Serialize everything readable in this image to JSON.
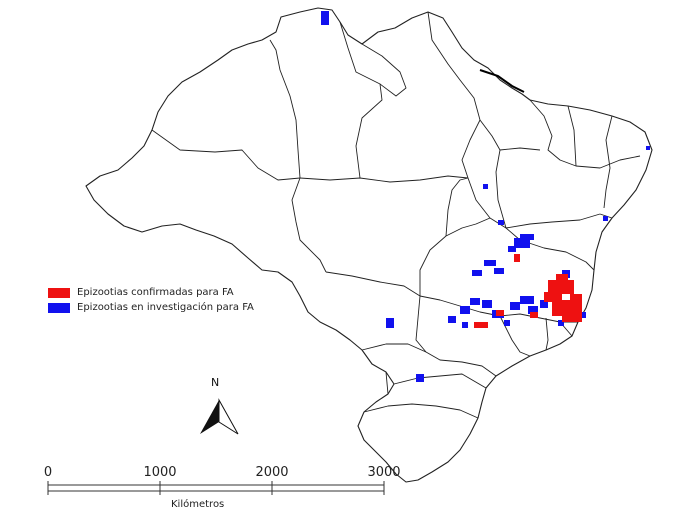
{
  "legend": {
    "confirmed": {
      "label": "Epizootias confirmadas para FA",
      "color": "#ee1111"
    },
    "investigation": {
      "label": "Epizootias en investigación para FA",
      "color": "#1111ee"
    }
  },
  "north_arrow": {
    "label": "N"
  },
  "scale_bar": {
    "ticks": [
      "0",
      "1000",
      "2000",
      "3000"
    ],
    "unit": "Kilómetros"
  },
  "colors": {
    "state_borders": "#222222",
    "land": "#ffffff"
  }
}
